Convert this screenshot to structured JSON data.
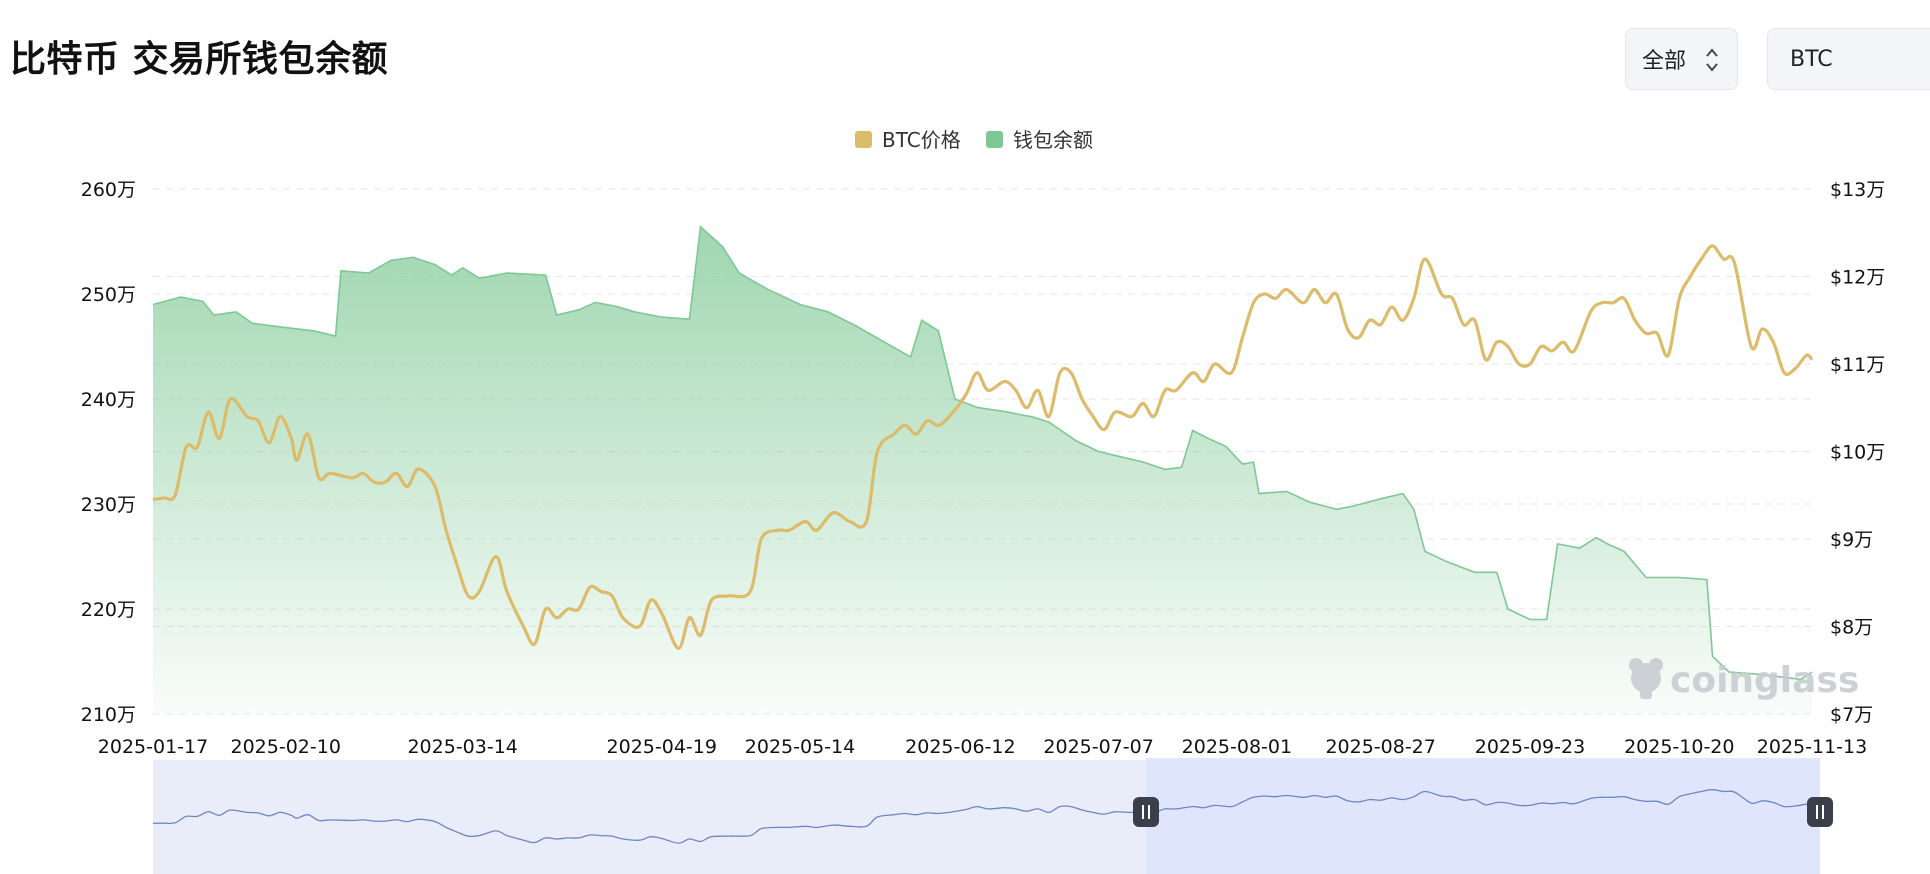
{
  "header": {
    "title": "比特币 交易所钱包余额",
    "range_select": "全部",
    "coin_select": "BTC"
  },
  "watermark": "coinglass",
  "colors": {
    "price": "#dcbb6a",
    "balance": "#7fc795",
    "navigator_line": "#6f86c4",
    "navigator_fill": "#e8edf9",
    "navigator_selected": "#dde3fb",
    "grid": "#e6e6e6"
  },
  "chart_data": {
    "type": "line",
    "legend": {
      "placement": "top-center",
      "items": [
        "BTC价格",
        "钱包余额"
      ]
    },
    "grid": true,
    "x_ticks": [
      "2025-01-17",
      "2025-02-10",
      "2025-03-14",
      "2025-04-19",
      "2025-05-14",
      "2025-06-12",
      "2025-07-07",
      "2025-08-01",
      "2025-08-27",
      "2025-09-23",
      "2025-10-20",
      "2025-11-13"
    ],
    "x_range": [
      "2025-01-17",
      "2025-11-13"
    ],
    "y_left": {
      "ticks": [
        "210万",
        "220万",
        "230万",
        "240万",
        "250万",
        "260万"
      ],
      "range": [
        2100000,
        2600000
      ]
    },
    "y_right": {
      "ticks": [
        "$7万",
        "$8万",
        "$9万",
        "$10万",
        "$11万",
        "$12万",
        "$13万"
      ],
      "range": [
        70000,
        130000
      ]
    },
    "series": [
      {
        "name": "钱包余额",
        "axis": "left",
        "type": "area",
        "points": [
          [
            "2025-01-17",
            2490000
          ],
          [
            "2025-01-22",
            2497000
          ],
          [
            "2025-01-26",
            2493000
          ],
          [
            "2025-01-28",
            2480000
          ],
          [
            "2025-02-01",
            2483000
          ],
          [
            "2025-02-04",
            2472000
          ],
          [
            "2025-02-10",
            2468000
          ],
          [
            "2025-02-15",
            2465000
          ],
          [
            "2025-02-19",
            2460000
          ],
          [
            "2025-02-20",
            2522000
          ],
          [
            "2025-02-25",
            2520000
          ],
          [
            "2025-03-01",
            2532000
          ],
          [
            "2025-03-05",
            2535000
          ],
          [
            "2025-03-09",
            2528000
          ],
          [
            "2025-03-12",
            2518000
          ],
          [
            "2025-03-14",
            2525000
          ],
          [
            "2025-03-17",
            2515000
          ],
          [
            "2025-03-22",
            2520000
          ],
          [
            "2025-03-29",
            2518000
          ],
          [
            "2025-03-31",
            2480000
          ],
          [
            "2025-04-04",
            2485000
          ],
          [
            "2025-04-07",
            2492000
          ],
          [
            "2025-04-11",
            2488000
          ],
          [
            "2025-04-14",
            2483000
          ],
          [
            "2025-04-19",
            2478000
          ],
          [
            "2025-04-24",
            2476000
          ],
          [
            "2025-04-26",
            2564000
          ],
          [
            "2025-04-30",
            2545000
          ],
          [
            "2025-05-03",
            2520000
          ],
          [
            "2025-05-08",
            2505000
          ],
          [
            "2025-05-14",
            2490000
          ],
          [
            "2025-05-19",
            2483000
          ],
          [
            "2025-05-24",
            2470000
          ],
          [
            "2025-05-29",
            2455000
          ],
          [
            "2025-06-03",
            2440000
          ],
          [
            "2025-06-05",
            2475000
          ],
          [
            "2025-06-08",
            2465000
          ],
          [
            "2025-06-11",
            2400000
          ],
          [
            "2025-06-15",
            2392000
          ],
          [
            "2025-06-20",
            2388000
          ],
          [
            "2025-06-25",
            2383000
          ],
          [
            "2025-06-28",
            2378000
          ],
          [
            "2025-07-03",
            2360000
          ],
          [
            "2025-07-07",
            2350000
          ],
          [
            "2025-07-11",
            2345000
          ],
          [
            "2025-07-15",
            2340000
          ],
          [
            "2025-07-19",
            2333000
          ],
          [
            "2025-07-22",
            2335000
          ],
          [
            "2025-07-24",
            2370000
          ],
          [
            "2025-07-27",
            2362000
          ],
          [
            "2025-07-30",
            2355000
          ],
          [
            "2025-08-02",
            2338000
          ],
          [
            "2025-08-04",
            2340000
          ],
          [
            "2025-08-05",
            2310000
          ],
          [
            "2025-08-10",
            2312000
          ],
          [
            "2025-08-14",
            2302000
          ],
          [
            "2025-08-19",
            2295000
          ],
          [
            "2025-08-22",
            2298000
          ],
          [
            "2025-08-27",
            2305000
          ],
          [
            "2025-08-31",
            2310000
          ],
          [
            "2025-09-02",
            2295000
          ],
          [
            "2025-09-04",
            2255000
          ],
          [
            "2025-09-08",
            2245000
          ],
          [
            "2025-09-13",
            2235000
          ],
          [
            "2025-09-17",
            2235000
          ],
          [
            "2025-09-19",
            2200000
          ],
          [
            "2025-09-23",
            2190000
          ],
          [
            "2025-09-26",
            2190000
          ],
          [
            "2025-09-28",
            2262000
          ],
          [
            "2025-10-02",
            2258000
          ],
          [
            "2025-10-05",
            2268000
          ],
          [
            "2025-10-07",
            2262000
          ],
          [
            "2025-10-10",
            2255000
          ],
          [
            "2025-10-14",
            2230000
          ],
          [
            "2025-10-20",
            2230000
          ],
          [
            "2025-10-25",
            2228000
          ],
          [
            "2025-10-26",
            2155000
          ],
          [
            "2025-10-29",
            2140000
          ],
          [
            "2025-11-03",
            2138000
          ],
          [
            "2025-11-08",
            2135000
          ],
          [
            "2025-11-11",
            2133000
          ],
          [
            "2025-11-13",
            2140000
          ]
        ]
      },
      {
        "name": "BTC价格",
        "axis": "right",
        "type": "line",
        "points": [
          [
            "2025-01-17",
            94500
          ],
          [
            "2025-01-19",
            94700
          ],
          [
            "2025-01-21",
            95000
          ],
          [
            "2025-01-23",
            100500
          ],
          [
            "2025-01-25",
            100500
          ],
          [
            "2025-01-27",
            104500
          ],
          [
            "2025-01-29",
            101500
          ],
          [
            "2025-01-31",
            106000
          ],
          [
            "2025-02-03",
            104000
          ],
          [
            "2025-02-05",
            103500
          ],
          [
            "2025-02-07",
            101000
          ],
          [
            "2025-02-09",
            104000
          ],
          [
            "2025-02-11",
            101500
          ],
          [
            "2025-02-12",
            99000
          ],
          [
            "2025-02-14",
            102000
          ],
          [
            "2025-02-16",
            97000
          ],
          [
            "2025-02-18",
            97500
          ],
          [
            "2025-02-22",
            97000
          ],
          [
            "2025-02-24",
            97500
          ],
          [
            "2025-02-26",
            96500
          ],
          [
            "2025-02-28",
            96500
          ],
          [
            "2025-03-02",
            97500
          ],
          [
            "2025-03-04",
            96000
          ],
          [
            "2025-03-06",
            98000
          ],
          [
            "2025-03-09",
            96000
          ],
          [
            "2025-03-11",
            91000
          ],
          [
            "2025-03-13",
            87000
          ],
          [
            "2025-03-15",
            83500
          ],
          [
            "2025-03-17",
            84000
          ],
          [
            "2025-03-20",
            88000
          ],
          [
            "2025-03-22",
            84000
          ],
          [
            "2025-03-25",
            80000
          ],
          [
            "2025-03-27",
            78000
          ],
          [
            "2025-03-29",
            82000
          ],
          [
            "2025-03-31",
            81000
          ],
          [
            "2025-04-02",
            82000
          ],
          [
            "2025-04-04",
            82000
          ],
          [
            "2025-04-06",
            84500
          ],
          [
            "2025-04-08",
            84000
          ],
          [
            "2025-04-10",
            83500
          ],
          [
            "2025-04-12",
            81000
          ],
          [
            "2025-04-15",
            80000
          ],
          [
            "2025-04-17",
            83000
          ],
          [
            "2025-04-19",
            81500
          ],
          [
            "2025-04-22",
            77500
          ],
          [
            "2025-04-24",
            81000
          ],
          [
            "2025-04-26",
            79000
          ],
          [
            "2025-04-28",
            83000
          ],
          [
            "2025-05-01",
            83500
          ],
          [
            "2025-05-05",
            84000
          ],
          [
            "2025-05-07",
            90000
          ],
          [
            "2025-05-10",
            91000
          ],
          [
            "2025-05-12",
            91000
          ],
          [
            "2025-05-15",
            92000
          ],
          [
            "2025-05-17",
            91000
          ],
          [
            "2025-05-20",
            93000
          ],
          [
            "2025-05-23",
            92000
          ],
          [
            "2025-05-26",
            92000
          ],
          [
            "2025-05-28",
            100000
          ],
          [
            "2025-05-31",
            102000
          ],
          [
            "2025-06-02",
            103000
          ],
          [
            "2025-06-04",
            102000
          ],
          [
            "2025-06-06",
            103500
          ],
          [
            "2025-06-08",
            103000
          ],
          [
            "2025-06-10",
            104000
          ],
          [
            "2025-06-13",
            106500
          ],
          [
            "2025-06-15",
            109000
          ],
          [
            "2025-06-17",
            107000
          ],
          [
            "2025-06-20",
            108000
          ],
          [
            "2025-06-22",
            107000
          ],
          [
            "2025-06-24",
            105000
          ],
          [
            "2025-06-26",
            107000
          ],
          [
            "2025-06-28",
            104000
          ],
          [
            "2025-06-30",
            109000
          ],
          [
            "2025-07-02",
            109000
          ],
          [
            "2025-07-04",
            106000
          ],
          [
            "2025-07-06",
            104000
          ],
          [
            "2025-07-08",
            102500
          ],
          [
            "2025-07-10",
            104500
          ],
          [
            "2025-07-13",
            104000
          ],
          [
            "2025-07-15",
            105500
          ],
          [
            "2025-07-17",
            104000
          ],
          [
            "2025-07-19",
            107000
          ],
          [
            "2025-07-21",
            107000
          ],
          [
            "2025-07-24",
            109000
          ],
          [
            "2025-07-26",
            108000
          ],
          [
            "2025-07-28",
            110000
          ],
          [
            "2025-07-31",
            109000
          ],
          [
            "2025-08-02",
            113000
          ],
          [
            "2025-08-04",
            117000
          ],
          [
            "2025-08-06",
            118000
          ],
          [
            "2025-08-08",
            117500
          ],
          [
            "2025-08-10",
            118500
          ],
          [
            "2025-08-13",
            117000
          ],
          [
            "2025-08-15",
            118500
          ],
          [
            "2025-08-17",
            117000
          ],
          [
            "2025-08-19",
            118000
          ],
          [
            "2025-08-21",
            114000
          ],
          [
            "2025-08-23",
            113000
          ],
          [
            "2025-08-25",
            115000
          ],
          [
            "2025-08-27",
            114500
          ],
          [
            "2025-08-29",
            116500
          ],
          [
            "2025-08-31",
            115000
          ],
          [
            "2025-09-02",
            117500
          ],
          [
            "2025-09-04",
            122000
          ],
          [
            "2025-09-07",
            118000
          ],
          [
            "2025-09-09",
            117500
          ],
          [
            "2025-09-11",
            114500
          ],
          [
            "2025-09-13",
            115000
          ],
          [
            "2025-09-15",
            110500
          ],
          [
            "2025-09-17",
            112500
          ],
          [
            "2025-09-19",
            112000
          ],
          [
            "2025-09-21",
            110000
          ],
          [
            "2025-09-23",
            110000
          ],
          [
            "2025-09-25",
            112000
          ],
          [
            "2025-09-27",
            111500
          ],
          [
            "2025-09-29",
            112500
          ],
          [
            "2025-10-01",
            111500
          ],
          [
            "2025-10-04",
            116000
          ],
          [
            "2025-10-06",
            117000
          ],
          [
            "2025-10-08",
            117000
          ],
          [
            "2025-10-10",
            117500
          ],
          [
            "2025-10-12",
            115000
          ],
          [
            "2025-10-14",
            113500
          ],
          [
            "2025-10-16",
            113500
          ],
          [
            "2025-10-18",
            111000
          ],
          [
            "2025-10-20",
            117500
          ],
          [
            "2025-10-22",
            120000
          ],
          [
            "2025-10-24",
            122000
          ],
          [
            "2025-10-26",
            123500
          ],
          [
            "2025-10-28",
            122000
          ],
          [
            "2025-10-30",
            121500
          ],
          [
            "2025-11-02",
            112000
          ],
          [
            "2025-11-04",
            114000
          ],
          [
            "2025-11-06",
            112500
          ],
          [
            "2025-11-08",
            109000
          ],
          [
            "2025-11-10",
            109500
          ],
          [
            "2025-11-12",
            111000
          ],
          [
            "2025-11-13",
            110500
          ]
        ]
      }
    ]
  }
}
